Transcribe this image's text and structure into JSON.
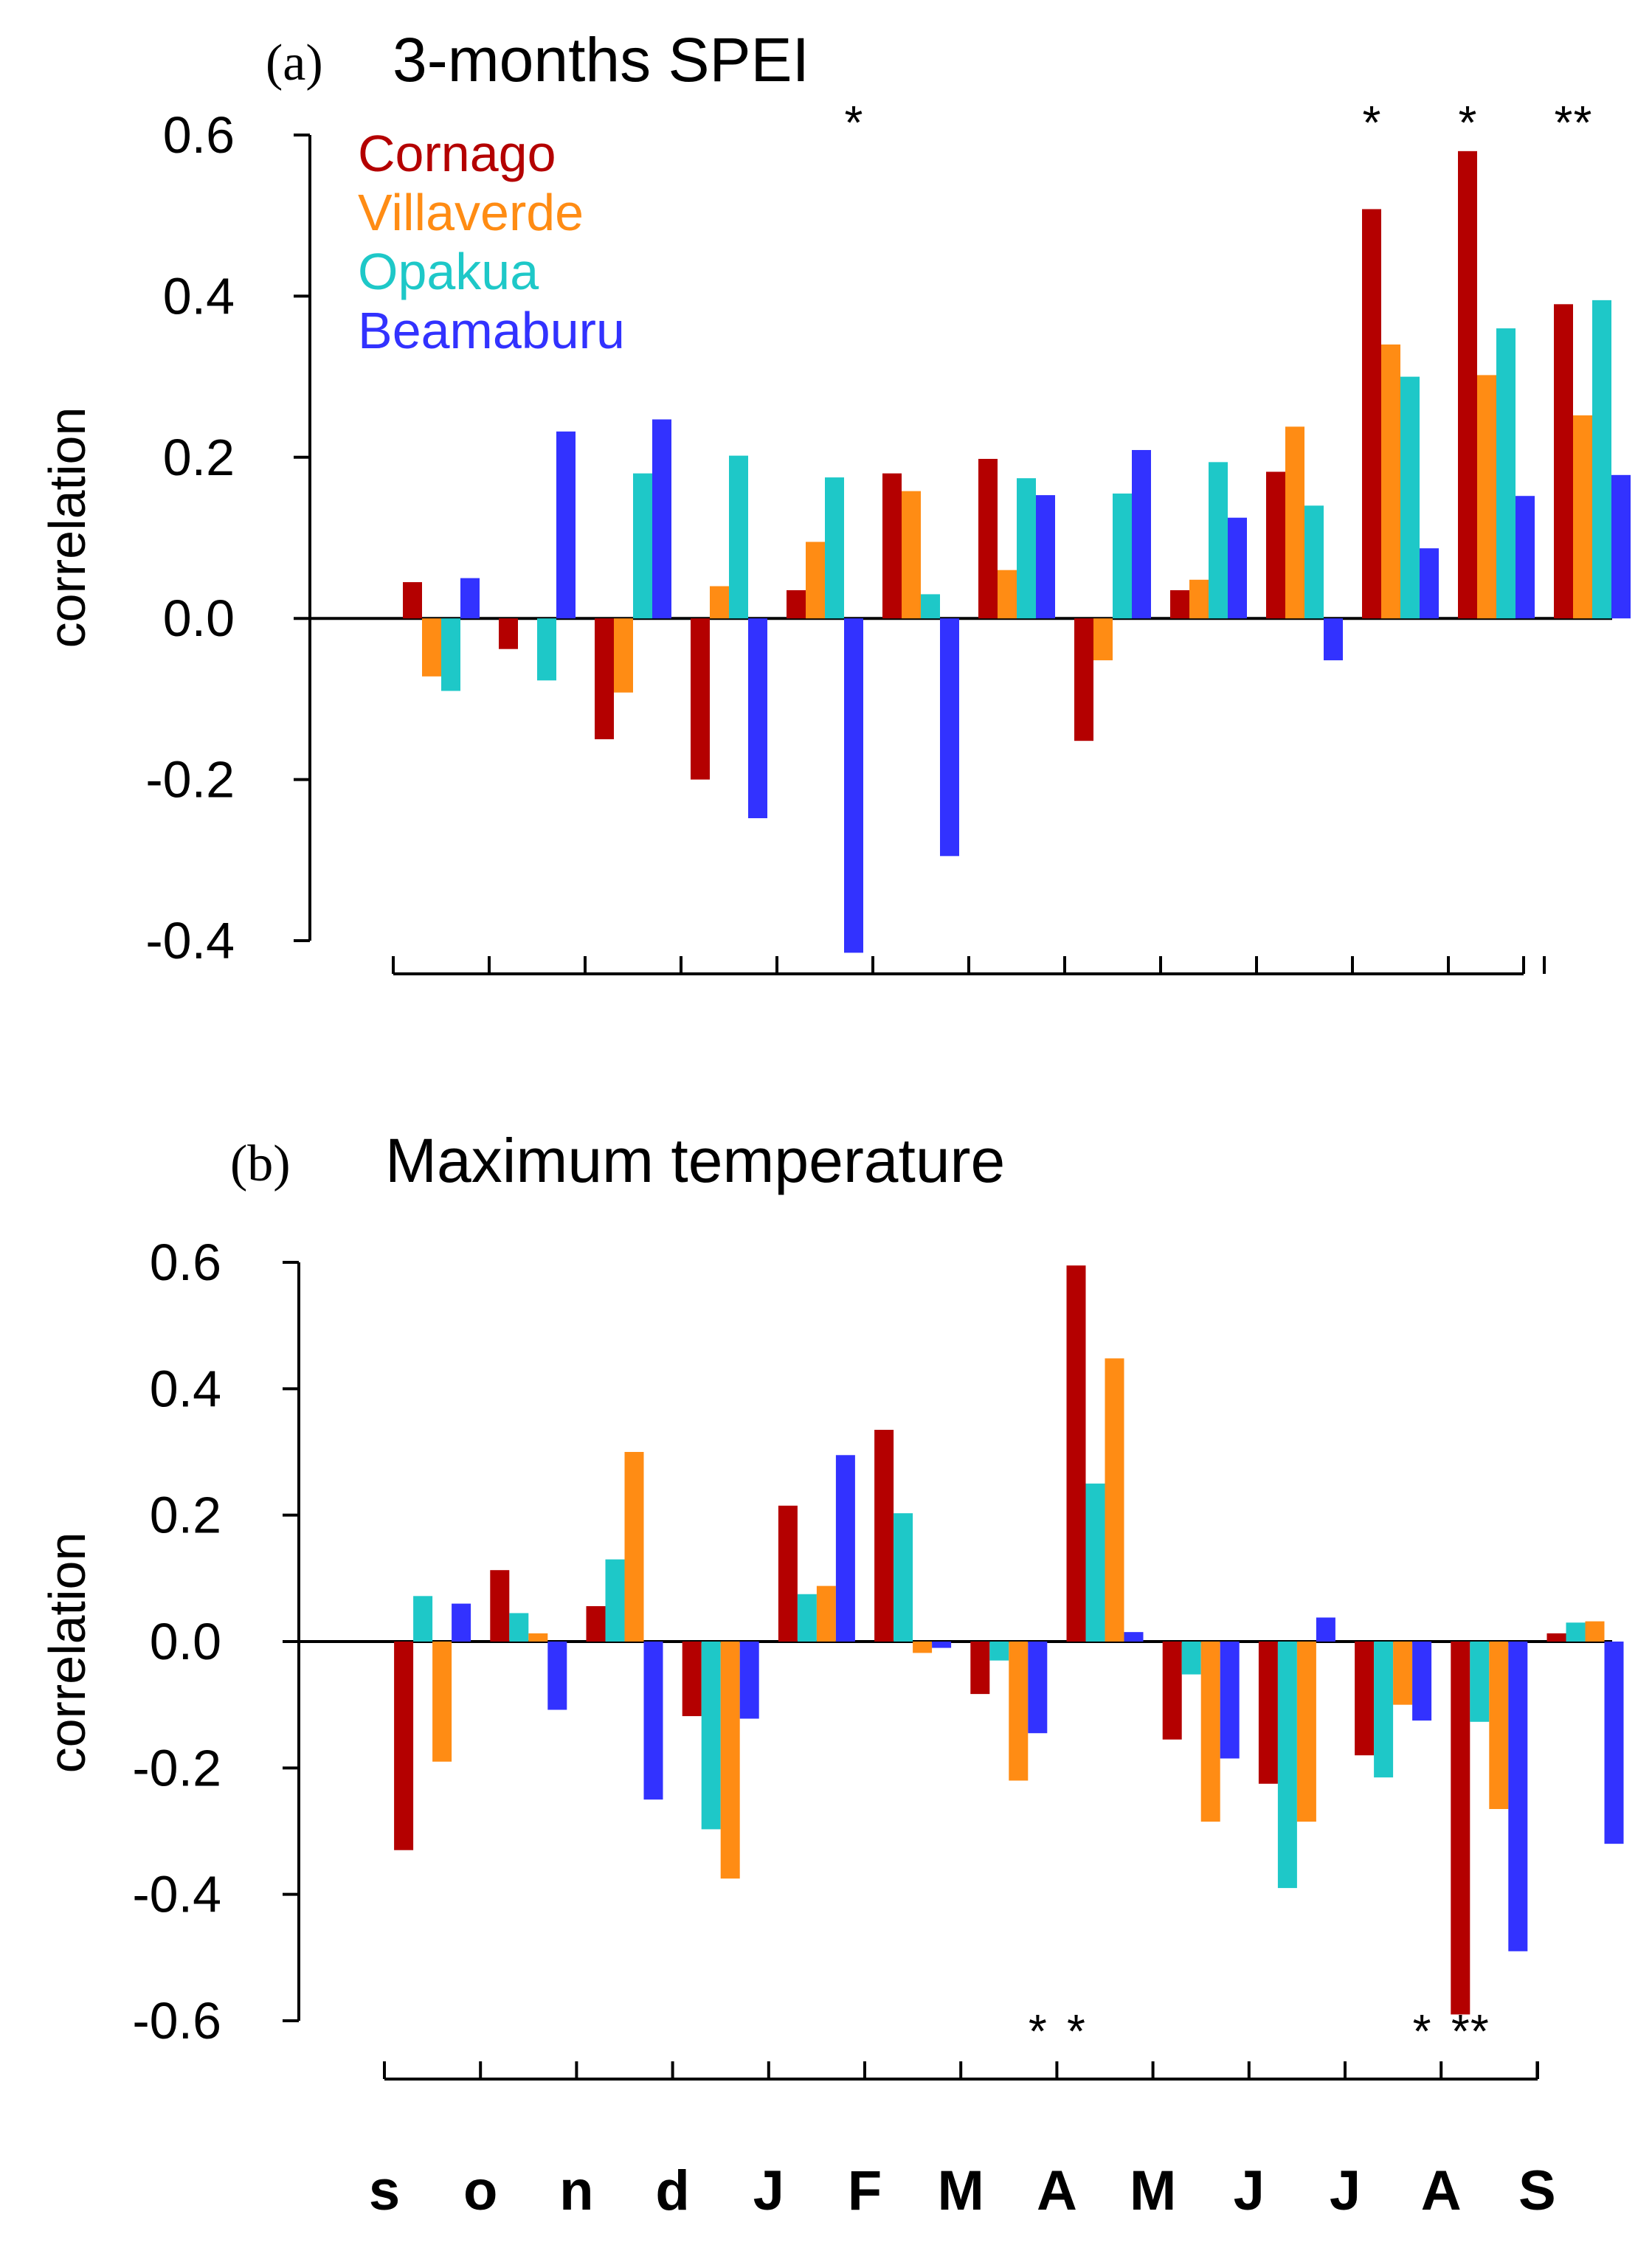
{
  "chart_data": [
    {
      "type": "bar",
      "panel": "(a)",
      "title": "3-months SPEI",
      "ylabel": "correlation",
      "xlabel": "",
      "ylim": [
        -0.4,
        0.6
      ],
      "yticks": [
        "-0.4",
        "-0.2",
        "0.0",
        "0.2",
        "0.4",
        "0.6"
      ],
      "categories": [
        "s",
        "o",
        "n",
        "d",
        "J",
        "F",
        "M",
        "A",
        "M",
        "J",
        "J",
        "A",
        "S"
      ],
      "series": [
        {
          "name": "Cornago",
          "color": "#b40000",
          "values": [
            0.045,
            -0.038,
            -0.15,
            -0.2,
            0.035,
            0.18,
            0.198,
            -0.152,
            0.035,
            0.182,
            0.508,
            0.58,
            0.39
          ]
        },
        {
          "name": "Villaverde",
          "color": "#ff8c14",
          "values": [
            -0.072,
            null,
            -0.092,
            0.04,
            0.095,
            0.158,
            0.06,
            -0.052,
            0.048,
            0.238,
            0.34,
            0.302,
            0.252
          ]
        },
        {
          "name": "Opakua",
          "color": "#1ec8c8",
          "values": [
            -0.09,
            -0.077,
            0.18,
            0.202,
            0.175,
            0.03,
            0.174,
            0.155,
            0.194,
            0.14,
            0.3,
            0.36,
            0.395
          ]
        },
        {
          "name": "Beamaburu",
          "color": "#3232ff",
          "values": [
            0.05,
            0.232,
            0.247,
            -0.248,
            -0.415,
            -0.295,
            0.153,
            0.209,
            0.125,
            -0.052,
            0.087,
            0.152,
            0.178
          ]
        }
      ],
      "significance": [
        {
          "label": "*",
          "category_index": 4,
          "series_index": 3,
          "position": "top"
        },
        {
          "label": "*",
          "category_index": 10,
          "series_index": 0,
          "position": "top"
        },
        {
          "label": "*",
          "category_index": 11,
          "series_index": 0,
          "position": "top"
        },
        {
          "label": "*",
          "category_index": 12,
          "series_index": 0,
          "position": "top"
        },
        {
          "label": "*",
          "category_index": 12,
          "series_index": 1,
          "position": "top"
        }
      ],
      "legend": "top-left"
    },
    {
      "type": "bar",
      "panel": "(b)",
      "title": "Maximum temperature",
      "ylabel": "correlation",
      "xlabel": "",
      "ylim": [
        -0.6,
        0.6
      ],
      "yticks": [
        "-0.6",
        "-0.4",
        "-0.2",
        "0.0",
        "0.2",
        "0.4",
        "0.6"
      ],
      "categories": [
        "s",
        "o",
        "n",
        "d",
        "J",
        "F",
        "M",
        "A",
        "M",
        "J",
        "J",
        "A",
        "S"
      ],
      "series": [
        {
          "name": "Cornago",
          "color": "#b40000",
          "values": [
            -0.33,
            0.113,
            0.056,
            -0.118,
            0.215,
            0.335,
            -0.083,
            0.595,
            -0.155,
            -0.225,
            -0.18,
            -0.59,
            0.013
          ]
        },
        {
          "name": "Opakua",
          "color": "#1ec8c8",
          "values": [
            0.072,
            0.045,
            0.13,
            -0.297,
            0.075,
            0.203,
            -0.03,
            0.25,
            -0.052,
            -0.39,
            -0.215,
            -0.127,
            0.03
          ]
        },
        {
          "name": "Villaverde",
          "color": "#ff8c14",
          "values": [
            -0.19,
            0.013,
            0.3,
            -0.375,
            0.088,
            -0.018,
            -0.22,
            0.448,
            -0.285,
            -0.285,
            -0.1,
            -0.265,
            0.032
          ]
        },
        {
          "name": "Beamaburu",
          "color": "#3232ff",
          "values": [
            0.06,
            -0.108,
            -0.25,
            -0.122,
            0.295,
            -0.01,
            -0.145,
            0.015,
            -0.185,
            0.038,
            -0.125,
            -0.49,
            -0.32
          ]
        }
      ],
      "significance": [
        {
          "label": "*",
          "category_index": 6,
          "series_index": 3,
          "position": "bottom"
        },
        {
          "label": "*",
          "category_index": 7,
          "series_index": 0,
          "position": "bottom"
        },
        {
          "label": "*",
          "category_index": 10,
          "series_index": 3,
          "position": "bottom"
        },
        {
          "label": "*",
          "category_index": 11,
          "series_index": 0,
          "position": "bottom"
        },
        {
          "label": "*",
          "category_index": 11,
          "series_index": 1,
          "position": "bottom"
        }
      ]
    }
  ]
}
